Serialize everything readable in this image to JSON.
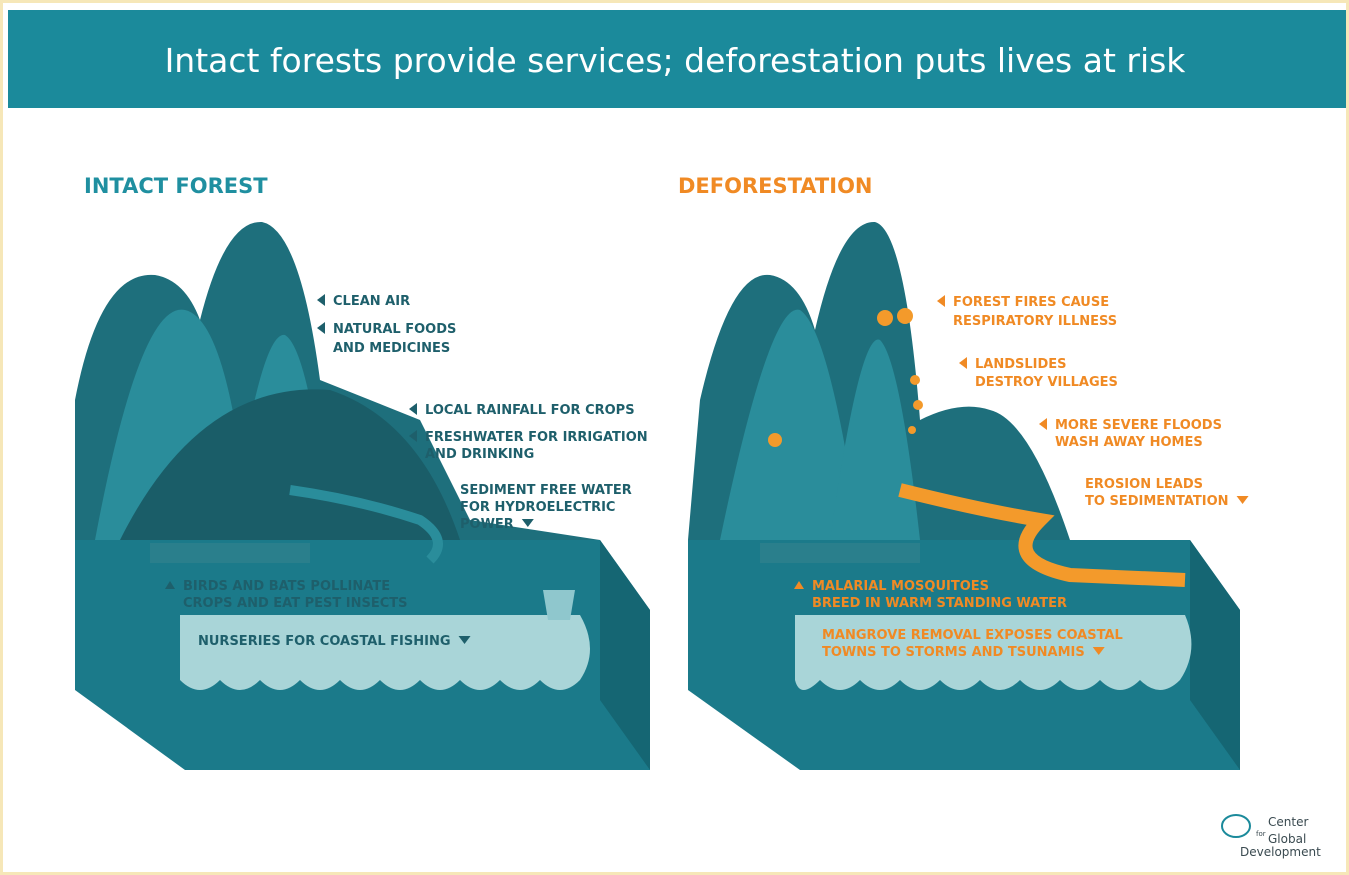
{
  "header": {
    "title": "Intact forests provide services; deforestation puts lives at risk"
  },
  "panels": [
    {
      "title": "INTACT FOREST",
      "labels": [
        [
          "CLEAN AIR"
        ],
        [
          "NATURAL FOODS",
          "AND  MEDICINES"
        ],
        [
          "LOCAL RAINFALL FOR CROPS"
        ],
        [
          "FRESHWATER FOR IRRIGATION",
          "AND DRINKING"
        ],
        [
          "SEDIMENT FREE WATER",
          "FOR HYDROELECTRIC",
          "POWER"
        ],
        [
          "BIRDS AND BATS POLLINATE",
          "CROPS AND EAT PEST INSECTS"
        ],
        [
          "NURSERIES FOR COASTAL FISHING"
        ]
      ]
    },
    {
      "title": "DEFORESTATION",
      "labels": [
        [
          "FOREST FIRES CAUSE",
          "RESPIRATORY ILLNESS"
        ],
        [
          "LANDSLIDES",
          "DESTROY VILLAGES"
        ],
        [
          "MORE SEVERE FLOODS",
          "WASH AWAY HOMES"
        ],
        [
          "EROSION LEADS",
          "TO SEDIMENTATION"
        ],
        [
          "MALARIAL MOSQUITOES",
          "BREED IN WARM STANDING WATER"
        ],
        [
          "MANGROVE REMOVAL EXPOSES COASTAL",
          "TOWNS TO STORMS AND TSUNAMIS"
        ]
      ]
    }
  ],
  "logo": {
    "lines": [
      "Center",
      "for",
      "Global",
      "Development"
    ]
  }
}
